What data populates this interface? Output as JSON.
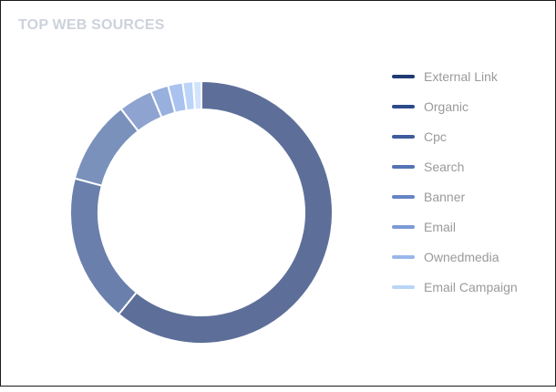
{
  "card": {
    "title": "TOP WEB SOURCES"
  },
  "legend": {
    "items": [
      {
        "label": "External Link",
        "color": "#1f3a73"
      },
      {
        "label": "Organic",
        "color": "#2b4b8a"
      },
      {
        "label": "Cpc",
        "color": "#3d5c9d"
      },
      {
        "label": "Search",
        "color": "#5373b4"
      },
      {
        "label": "Banner",
        "color": "#6584c4"
      },
      {
        "label": "Email",
        "color": "#7c9ad6"
      },
      {
        "label": "Ownedmedia",
        "color": "#9ab7ec"
      },
      {
        "label": "Email Campaign",
        "color": "#b9d6f7"
      }
    ]
  },
  "chart_data": {
    "type": "pie",
    "variant": "donut",
    "title": "TOP WEB SOURCES",
    "categories": [
      "External Link",
      "Organic",
      "Cpc",
      "Search",
      "Banner",
      "Email",
      "Ownedmedia",
      "Email Campaign"
    ],
    "values": [
      60.8,
      18.3,
      10.3,
      4.2,
      2.2,
      1.8,
      1.3,
      1.0
    ],
    "units": "percent (estimated from arc angles)",
    "segment_colors": [
      "#5d6f99",
      "#6a7fab",
      "#7a91bc",
      "#8ea3cf",
      "#98b0de",
      "#a9c2ee",
      "#bcd4f8",
      "#d2e4fb"
    ],
    "legend_position": "right",
    "start_angle_deg": 0,
    "direction": "clockwise"
  }
}
